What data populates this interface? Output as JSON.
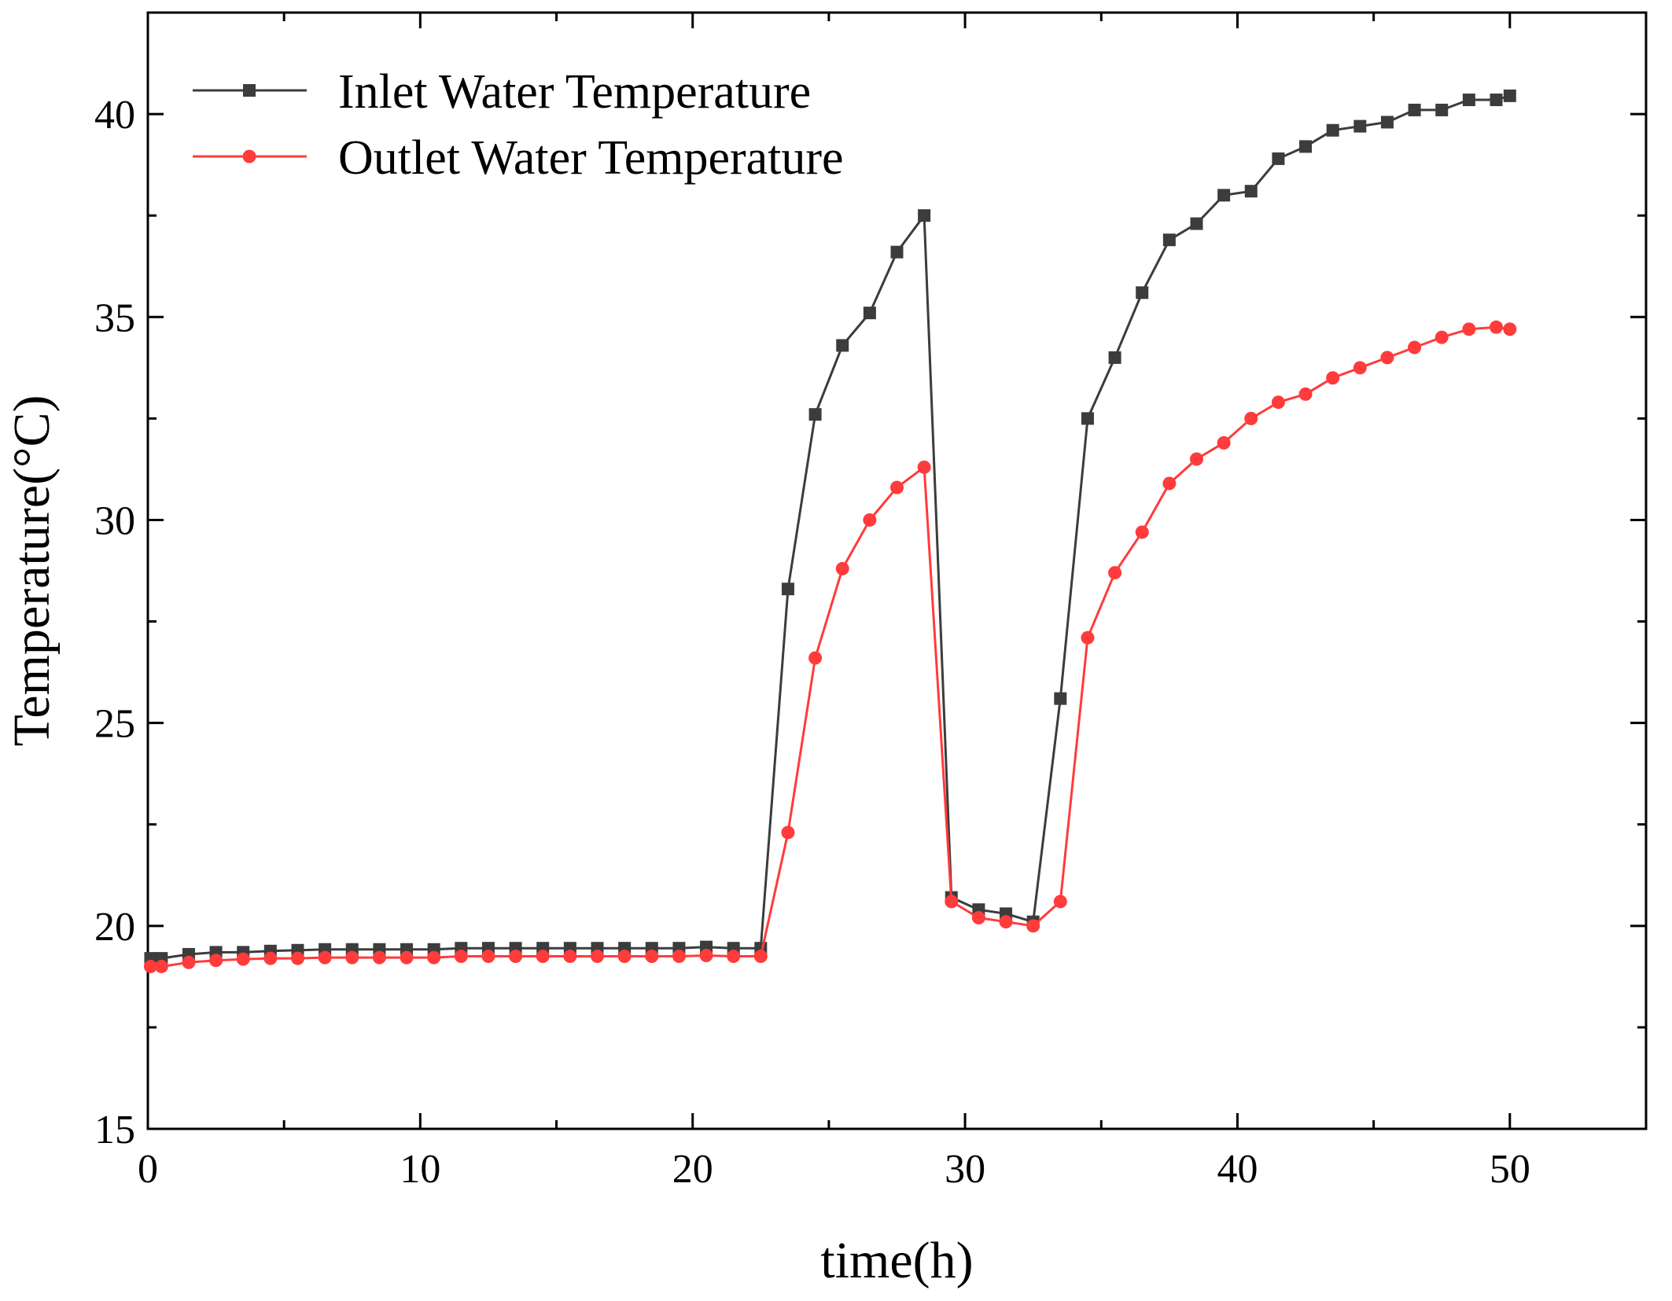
{
  "chart_data": {
    "type": "line",
    "title": "",
    "xlabel": "time(h)",
    "ylabel": "Temperature(°C)",
    "xlim": [
      0,
      55
    ],
    "ylim": [
      15,
      42.5
    ],
    "x_ticks": [
      0,
      10,
      20,
      30,
      40,
      50
    ],
    "y_ticks": [
      15,
      20,
      25,
      30,
      35,
      40
    ],
    "x_tick_labels": [
      "0",
      "10",
      "20",
      "30",
      "40",
      "50"
    ],
    "y_tick_labels": [
      "15",
      "20",
      "25",
      "30",
      "35",
      "40"
    ],
    "legend_position": "top-left",
    "grid": false,
    "series": [
      {
        "name": "Inlet Water Temperature",
        "color": "#3c3c3c",
        "marker": "square",
        "x": [
          0.1,
          0.5,
          1.5,
          2.5,
          3.5,
          4.5,
          5.5,
          6.5,
          7.5,
          8.5,
          9.5,
          10.5,
          11.5,
          12.5,
          13.5,
          14.5,
          15.5,
          16.5,
          17.5,
          18.5,
          19.5,
          20.5,
          21.5,
          22.5,
          23.5,
          24.5,
          25.5,
          26.5,
          27.5,
          28.5,
          29.5,
          30.5,
          31.5,
          32.5,
          33.5,
          34.5,
          35.5,
          36.5,
          37.5,
          38.5,
          39.5,
          40.5,
          41.5,
          42.5,
          43.5,
          44.5,
          45.5,
          46.5,
          47.5,
          48.5,
          49.5,
          50.0
        ],
        "y": [
          19.2,
          19.2,
          19.3,
          19.35,
          19.35,
          19.38,
          19.4,
          19.42,
          19.42,
          19.42,
          19.42,
          19.42,
          19.45,
          19.45,
          19.45,
          19.45,
          19.45,
          19.45,
          19.45,
          19.45,
          19.45,
          19.48,
          19.45,
          19.45,
          28.3,
          32.6,
          34.3,
          35.1,
          36.6,
          37.5,
          20.7,
          20.4,
          20.3,
          20.1,
          25.6,
          32.5,
          34.0,
          35.6,
          36.9,
          37.3,
          38.0,
          38.1,
          38.9,
          39.2,
          39.6,
          39.7,
          39.8,
          40.1,
          40.1,
          40.35,
          40.35,
          40.45
        ]
      },
      {
        "name": "Outlet Water Temperature",
        "color": "#ff3b3b",
        "marker": "circle",
        "x": [
          0.1,
          0.5,
          1.5,
          2.5,
          3.5,
          4.5,
          5.5,
          6.5,
          7.5,
          8.5,
          9.5,
          10.5,
          11.5,
          12.5,
          13.5,
          14.5,
          15.5,
          16.5,
          17.5,
          18.5,
          19.5,
          20.5,
          21.5,
          22.5,
          23.5,
          24.5,
          25.5,
          26.5,
          27.5,
          28.5,
          29.5,
          30.5,
          31.5,
          32.5,
          33.5,
          34.5,
          35.5,
          36.5,
          37.5,
          38.5,
          39.5,
          40.5,
          41.5,
          42.5,
          43.5,
          44.5,
          45.5,
          46.5,
          47.5,
          48.5,
          49.5,
          50.0
        ],
        "y": [
          19.0,
          19.0,
          19.1,
          19.15,
          19.18,
          19.2,
          19.2,
          19.22,
          19.22,
          19.22,
          19.22,
          19.22,
          19.25,
          19.25,
          19.25,
          19.25,
          19.25,
          19.25,
          19.25,
          19.25,
          19.25,
          19.27,
          19.25,
          19.25,
          22.3,
          26.6,
          28.8,
          30.0,
          30.8,
          31.3,
          20.6,
          20.2,
          20.1,
          20.0,
          20.6,
          27.1,
          28.7,
          29.7,
          30.9,
          31.5,
          31.9,
          32.5,
          32.9,
          33.1,
          33.5,
          33.75,
          34.0,
          34.25,
          34.5,
          34.7,
          34.75,
          34.7
        ]
      }
    ]
  }
}
